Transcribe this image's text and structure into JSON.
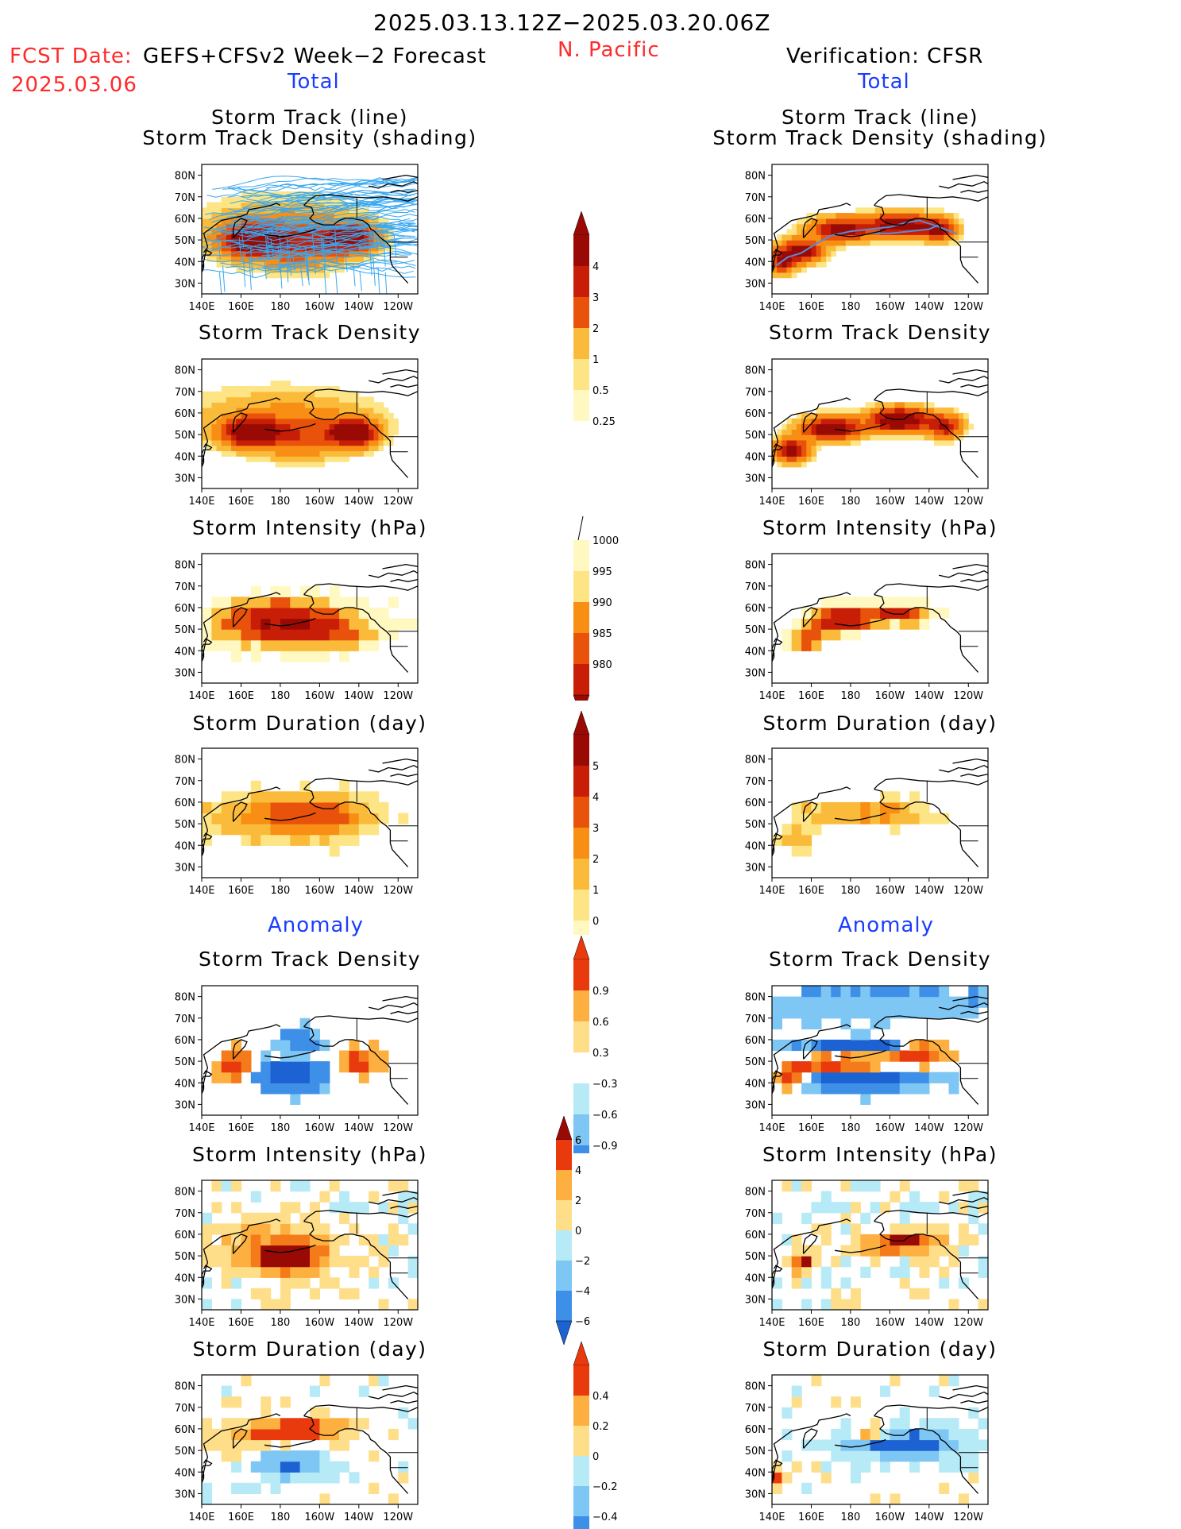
{
  "header": {
    "date_range": "2025.03.13.12Z−2025.03.20.06Z",
    "fcst_date_label": "FCST Date:",
    "fcst_model": "GEFS+CFSv2 Week−2 Forecast",
    "fcst_date": "2025.03.06",
    "region": "N. Pacific",
    "verification": "Verification: CFSR",
    "left_section_total": "Total",
    "right_section_total": "Total",
    "left_section_anomaly": "Anomaly",
    "right_section_anomaly": "Anomaly"
  },
  "panel_titles": {
    "track_line": "Storm Track (line)",
    "track_shading": "Storm Track Density (shading)",
    "density": "Storm Track Density",
    "intensity": "Storm Intensity (hPa)",
    "duration": "Storm Duration (day)"
  },
  "axes": {
    "x_ticks": [
      "140E",
      "160E",
      "180",
      "160W",
      "140W",
      "120W"
    ],
    "y_ticks": [
      "80N",
      "70N",
      "60N",
      "50N",
      "40N",
      "30N"
    ]
  },
  "colors": {
    "seq": [
      "#fff8c0",
      "#fde586",
      "#fbbb3a",
      "#f88e14",
      "#e8520a",
      "#c81e07",
      "#9a0a05"
    ],
    "anom_pos": [
      "#ffde8a",
      "#fdb040",
      "#f57a1a",
      "#e83a0c"
    ],
    "anom_neg": [
      "#b6eaf6",
      "#7ec6f4",
      "#3e8fe8",
      "#1c62d2"
    ],
    "track_line": "#38a8f0",
    "track_cfsr": "#5a8ad8"
  },
  "colorbars": {
    "density_total": {
      "labels": [
        "4",
        "3",
        "2",
        "1",
        "0.5",
        "0.25"
      ]
    },
    "intensity_total": {
      "labels": [
        "1000",
        "995",
        "990",
        "985",
        "980"
      ]
    },
    "duration_total": {
      "labels": [
        "5",
        "4",
        "3",
        "2",
        "1",
        "0"
      ]
    },
    "density_anom": {
      "labels": [
        "0.9",
        "0.6",
        "0.3",
        "−0.3",
        "−0.6",
        "−0.9"
      ]
    },
    "intensity_anom": {
      "labels": [
        "6",
        "4",
        "2",
        "0",
        "−2",
        "−4",
        "−6"
      ]
    },
    "duration_anom": {
      "labels": [
        "0.4",
        "0.2",
        "0",
        "−0.2",
        "−0.4"
      ]
    }
  },
  "chart_data": [
    {
      "type": "heatmap",
      "id": "fcst_track",
      "title": "Storm Track (line) / Storm Track Density (shading)",
      "source": "GEFS+CFSv2",
      "section": "Total",
      "field": "track_density",
      "core": "track_fcst"
    },
    {
      "type": "heatmap",
      "id": "cfsr_track",
      "title": "Storm Track (line) / Storm Track Density (shading)",
      "source": "CFSR",
      "section": "Total",
      "field": "track_density",
      "core": "track_obs"
    },
    {
      "type": "heatmap",
      "id": "fcst_density",
      "title": "Storm Track Density",
      "source": "GEFS+CFSv2",
      "section": "Total",
      "field": "density",
      "core": "density_fcst"
    },
    {
      "type": "heatmap",
      "id": "cfsr_density",
      "title": "Storm Track Density",
      "source": "CFSR",
      "section": "Total",
      "field": "density",
      "core": "density_obs"
    },
    {
      "type": "heatmap",
      "id": "fcst_intensity",
      "title": "Storm Intensity (hPa)",
      "source": "GEFS+CFSv2",
      "section": "Total",
      "field": "intensity",
      "core": "intensity_fcst"
    },
    {
      "type": "heatmap",
      "id": "cfsr_intensity",
      "title": "Storm Intensity (hPa)",
      "source": "CFSR",
      "section": "Total",
      "field": "intensity",
      "core": "intensity_obs"
    },
    {
      "type": "heatmap",
      "id": "fcst_duration",
      "title": "Storm Duration (day)",
      "source": "GEFS+CFSv2",
      "section": "Total",
      "field": "duration",
      "core": "duration_fcst"
    },
    {
      "type": "heatmap",
      "id": "cfsr_duration",
      "title": "Storm Duration (day)",
      "source": "CFSR",
      "section": "Total",
      "field": "duration",
      "core": "duration_obs"
    },
    {
      "type": "heatmap",
      "id": "fcst_density_anom",
      "title": "Storm Track Density",
      "source": "GEFS+CFSv2",
      "section": "Anomaly",
      "field": "density_anom",
      "core": "anom_density_fcst"
    },
    {
      "type": "heatmap",
      "id": "cfsr_density_anom",
      "title": "Storm Track Density",
      "source": "CFSR",
      "section": "Anomaly",
      "field": "density_anom",
      "core": "anom_density_obs"
    },
    {
      "type": "heatmap",
      "id": "fcst_intensity_anom",
      "title": "Storm Intensity (hPa)",
      "source": "GEFS+CFSv2",
      "section": "Anomaly",
      "field": "intensity_anom",
      "core": "anom_intensity_fcst"
    },
    {
      "type": "heatmap",
      "id": "cfsr_intensity_anom",
      "title": "Storm Intensity (hPa)",
      "source": "CFSR",
      "section": "Anomaly",
      "field": "intensity_anom",
      "core": "anom_intensity_obs"
    },
    {
      "type": "heatmap",
      "id": "fcst_duration_anom",
      "title": "Storm Duration (day)",
      "source": "GEFS+CFSv2",
      "section": "Anomaly",
      "field": "duration_anom",
      "core": "anom_duration_fcst"
    },
    {
      "type": "heatmap",
      "id": "cfsr_duration_anom",
      "title": "Storm Duration (day)",
      "source": "CFSR",
      "section": "Anomaly",
      "field": "duration_anom",
      "core": "anom_duration_obs"
    }
  ]
}
